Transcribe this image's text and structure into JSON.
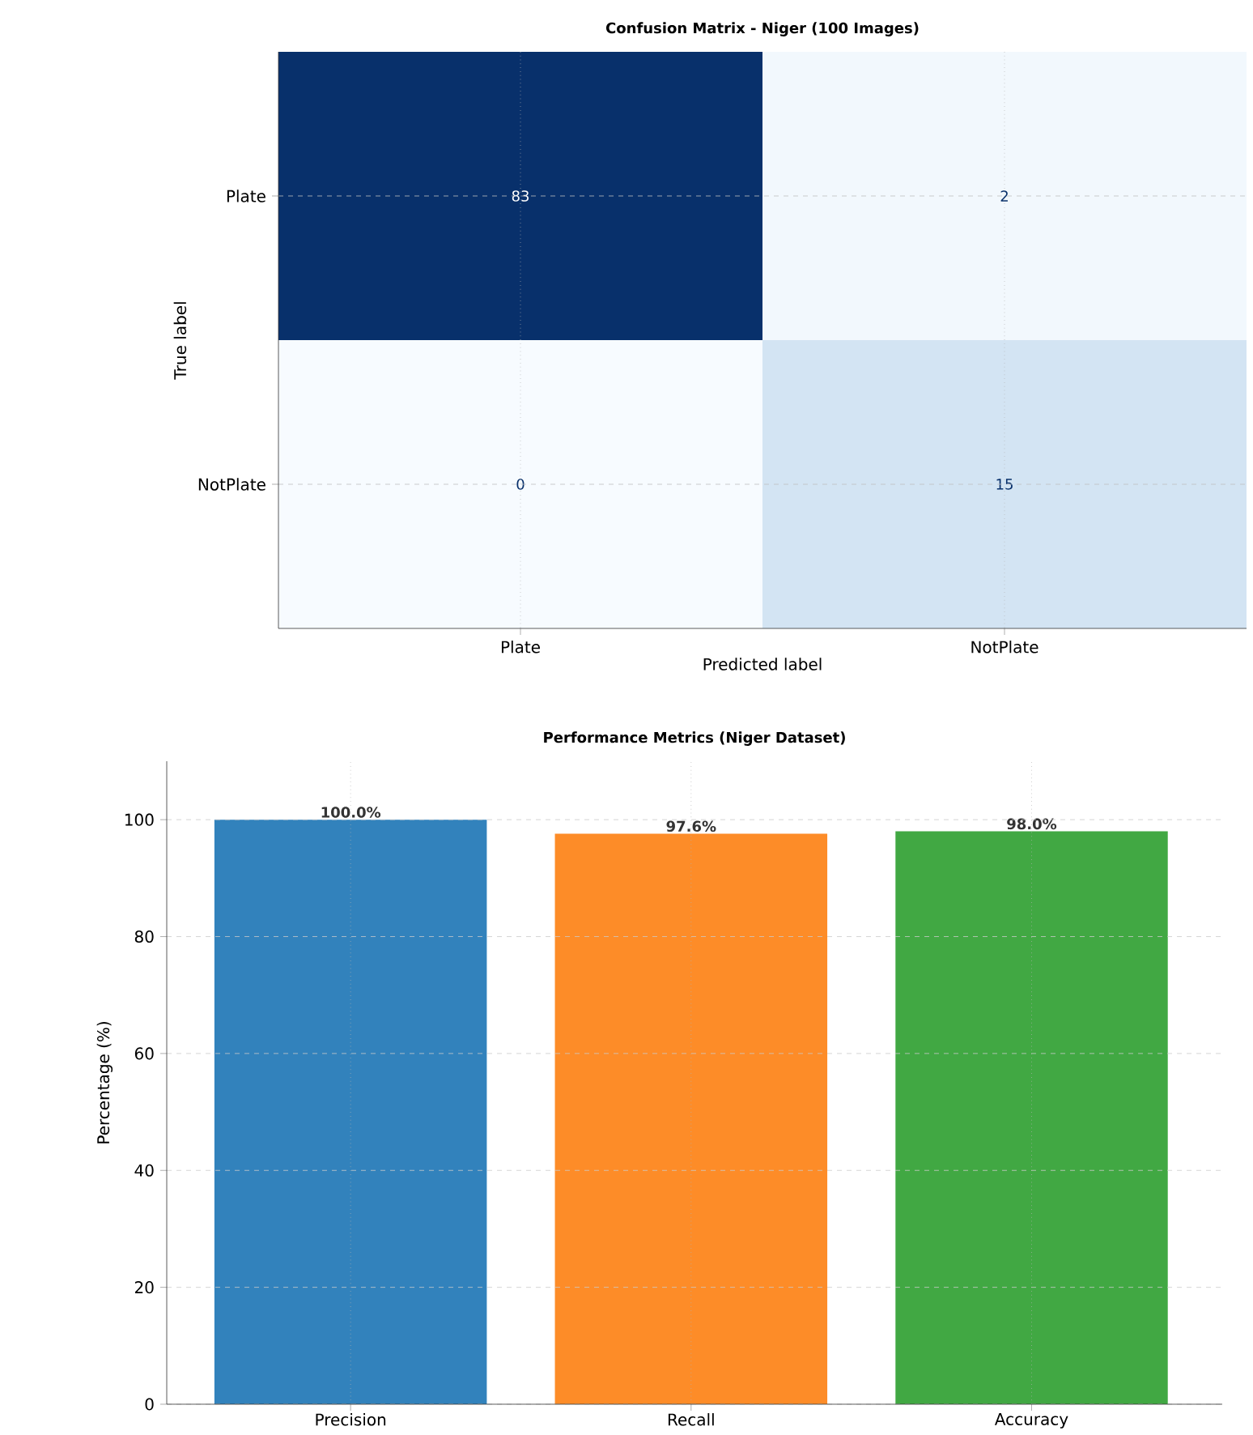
{
  "chart_data": [
    {
      "type": "heatmap",
      "title": "Confusion Matrix - Niger (100 Images)",
      "xlabel": "Predicted label",
      "ylabel": "True label",
      "categories": [
        "Plate",
        "NotPlate"
      ],
      "y_categories": [
        "Plate",
        "NotPlate"
      ],
      "cells": [
        [
          83,
          2
        ],
        [
          0,
          15
        ]
      ],
      "data_labels": true,
      "grid": true
    },
    {
      "type": "bar",
      "title": "Performance Metrics (Niger Dataset)",
      "ylabel": "Percentage (%)",
      "categories": [
        "Precision",
        "Recall",
        "Accuracy"
      ],
      "values": [
        100,
        97.6,
        98.0
      ],
      "colors": [
        "#3282bc",
        "#fd8c28",
        "#41a843"
      ],
      "value_labels": [
        "100.0%",
        "97.6%",
        "98.0%"
      ],
      "ylim": [
        0,
        110
      ],
      "yticks": [
        0,
        20,
        40,
        60,
        80,
        100
      ],
      "grid": true
    }
  ]
}
